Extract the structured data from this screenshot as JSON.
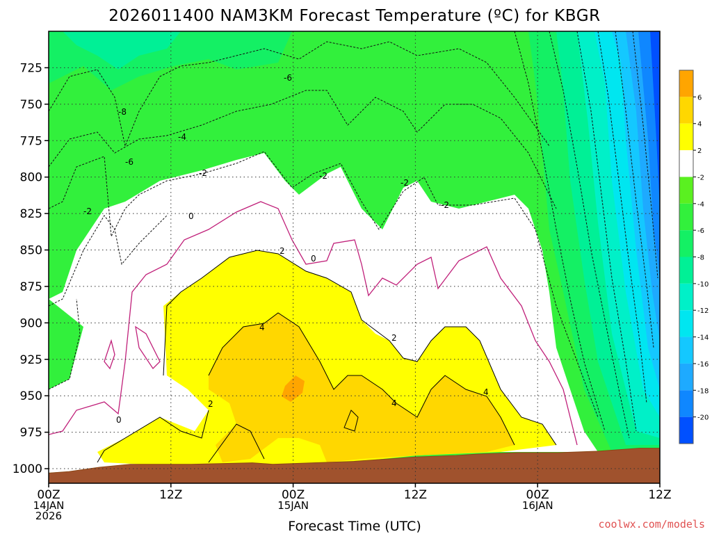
{
  "chart_data": {
    "type": "heatmap",
    "title": "2026011400 NAM3KM Forecast Temperature (ºC) for KBGR",
    "xlabel": "Forecast Time (UTC)",
    "ylabel": "",
    "credit": "coolwx.com/models",
    "x_range_hours": [
      0,
      60
    ],
    "x_ticks": [
      {
        "hour": 0,
        "lines": [
          "00Z",
          "14JAN",
          "2026"
        ]
      },
      {
        "hour": 12,
        "lines": [
          "12Z"
        ]
      },
      {
        "hour": 24,
        "lines": [
          "00Z",
          "15JAN"
        ]
      },
      {
        "hour": 36,
        "lines": [
          "12Z"
        ]
      },
      {
        "hour": 48,
        "lines": [
          "00Z",
          "16JAN"
        ]
      },
      {
        "hour": 60,
        "lines": [
          "12Z"
        ]
      }
    ],
    "y_range_hpa": [
      700,
      1010
    ],
    "y_ticks": [
      725,
      750,
      775,
      800,
      825,
      850,
      875,
      900,
      925,
      950,
      975,
      1000
    ],
    "colorbar": {
      "levels": [
        -20,
        -18,
        -16,
        -14,
        -12,
        -10,
        -8,
        -6,
        -4,
        -2,
        2,
        4,
        6
      ],
      "colors": [
        "#0050ff",
        "#0f87ff",
        "#1eaaff",
        "#14c8ff",
        "#00e6f0",
        "#00f0c8",
        "#00f096",
        "#14f064",
        "#32f03c",
        "#5af020",
        "#ffffff",
        "#ffff00",
        "#ffd700",
        "#ffa500"
      ],
      "labels": [
        "6",
        "4",
        "2",
        "-2",
        "-4",
        "-6",
        "-8",
        "-10",
        "-12",
        "-14",
        "-16",
        "-18",
        "-20"
      ]
    },
    "contour_labels": [
      "-6",
      "-8",
      "-4",
      "-6",
      "-2",
      "-2",
      "-2",
      "-2",
      "-2",
      "0",
      "2",
      "0",
      "4",
      "2",
      "2",
      "4",
      "4",
      "0"
    ],
    "terrain_pressure_hpa": [
      [
        0,
        1003
      ],
      [
        2,
        1002
      ],
      [
        5,
        999
      ],
      [
        8,
        997
      ],
      [
        14,
        997
      ],
      [
        20,
        996
      ],
      [
        22,
        997
      ],
      [
        26,
        996
      ],
      [
        30,
        995
      ],
      [
        34,
        993
      ],
      [
        36,
        992
      ],
      [
        40,
        991
      ],
      [
        42,
        990
      ],
      [
        46,
        989
      ],
      [
        50,
        989
      ],
      [
        54,
        988
      ],
      [
        56,
        987
      ],
      [
        58,
        986
      ],
      [
        60,
        986
      ]
    ]
  }
}
